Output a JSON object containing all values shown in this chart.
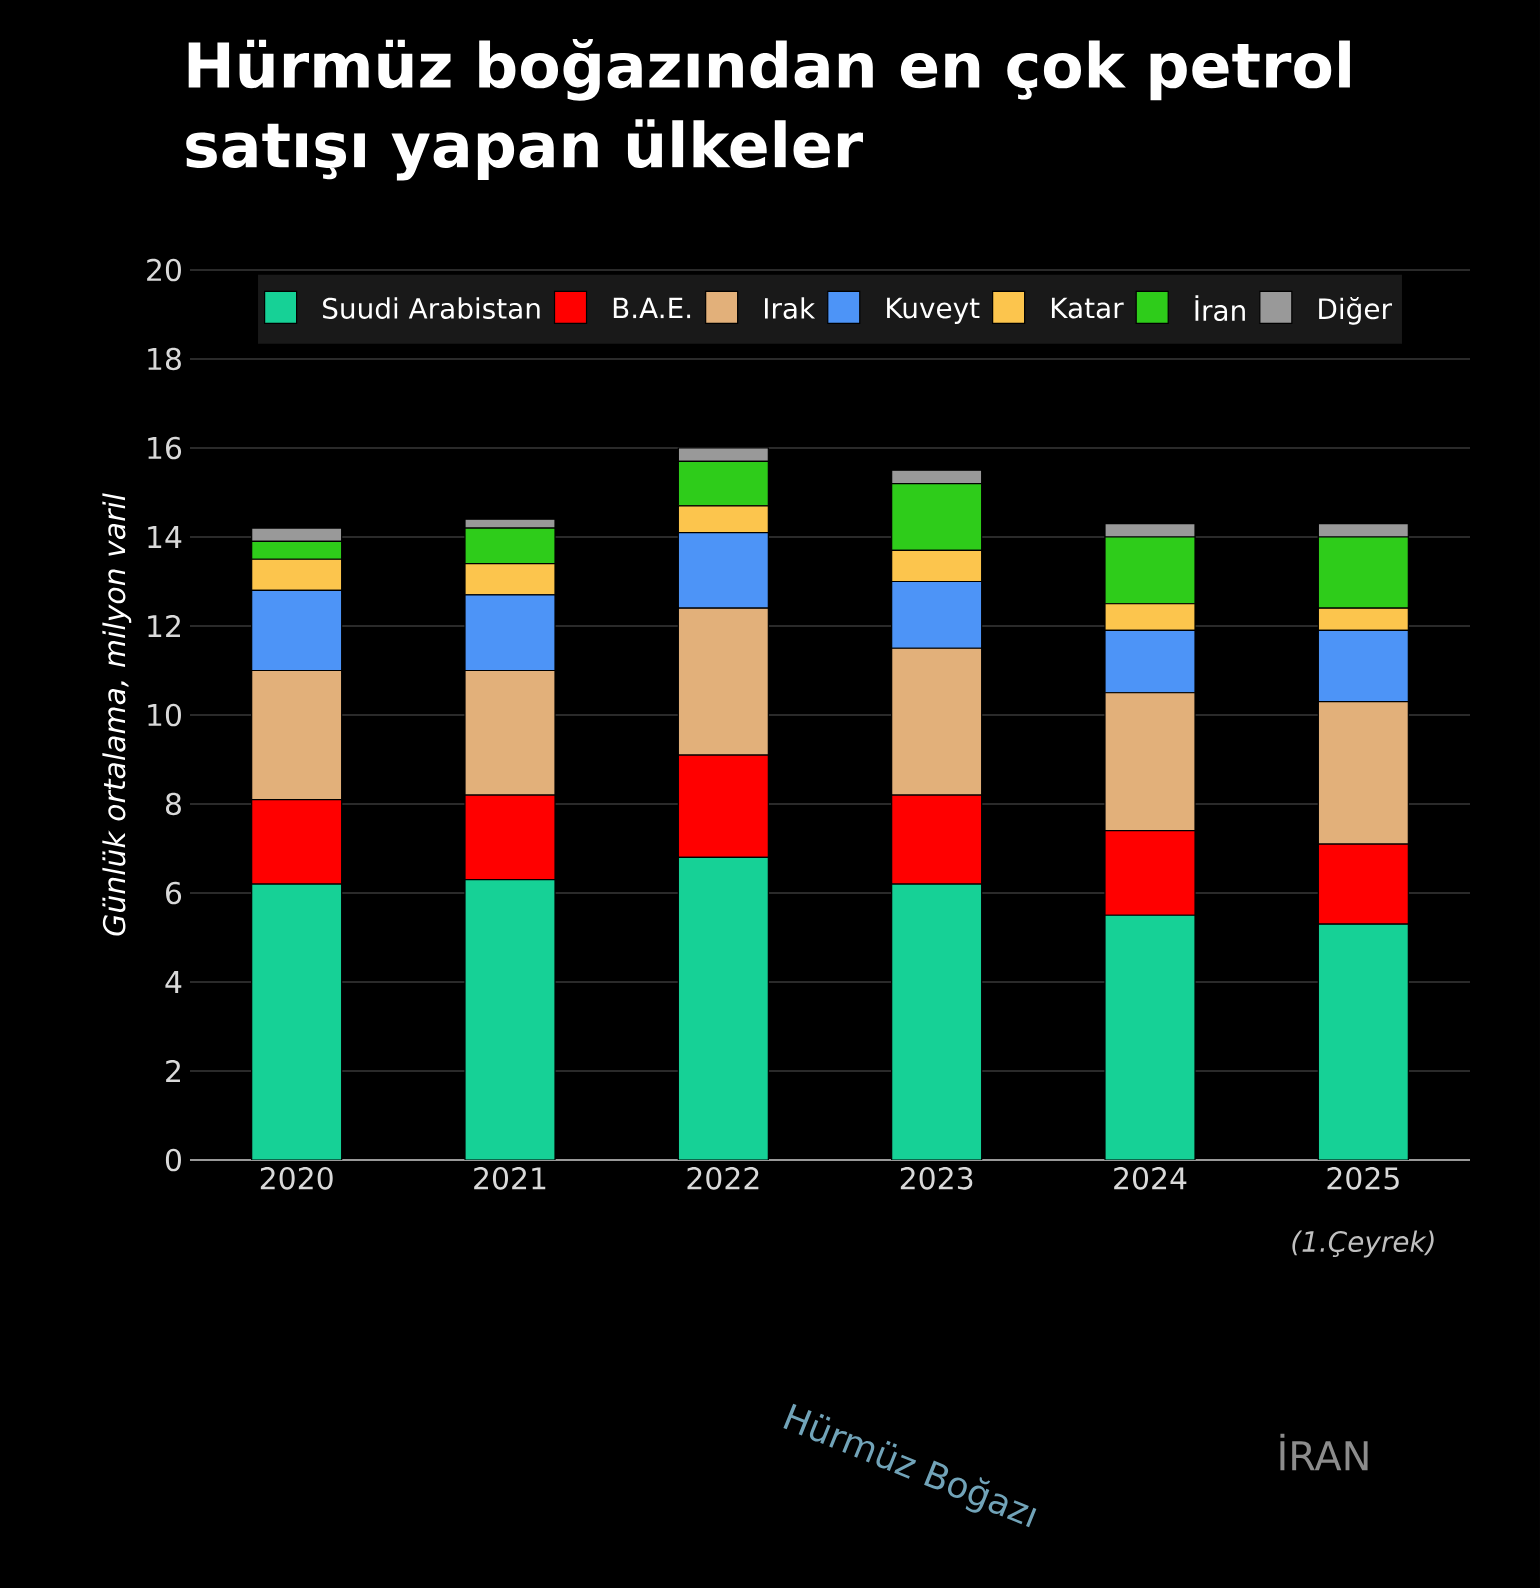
{
  "chart_data": {
    "type": "bar",
    "stacked": true,
    "title": "Hürmüz boğazından en çok petrol satışı yapan ülkeler",
    "ylabel": "Günlük ortalama, milyon varil",
    "categories": [
      "2020",
      "2021",
      "2022",
      "2023",
      "2024",
      "2025"
    ],
    "series": [
      {
        "name": "Suudi Arabistan",
        "color": "#16d196",
        "values": [
          6.2,
          6.3,
          6.8,
          6.2,
          5.5,
          5.3
        ]
      },
      {
        "name": "B.A.E.",
        "color": "#ff0000",
        "values": [
          1.9,
          1.9,
          2.3,
          2.0,
          1.9,
          1.8
        ]
      },
      {
        "name": "Irak",
        "color": "#e2b07a",
        "values": [
          2.9,
          2.8,
          3.3,
          3.3,
          3.1,
          3.2
        ]
      },
      {
        "name": "Kuveyt",
        "color": "#4d94f7",
        "values": [
          1.8,
          1.7,
          1.7,
          1.5,
          1.4,
          1.6
        ]
      },
      {
        "name": "Katar",
        "color": "#fcc54d",
        "values": [
          0.7,
          0.7,
          0.6,
          0.7,
          0.6,
          0.5
        ]
      },
      {
        "name": "İran",
        "color": "#2ecc1a",
        "values": [
          0.4,
          0.8,
          1.0,
          1.5,
          1.5,
          1.6
        ]
      },
      {
        "name": "Diğer",
        "color": "#999999",
        "values": [
          0.3,
          0.2,
          0.3,
          0.3,
          0.3,
          0.3
        ]
      }
    ],
    "ylim": [
      0,
      20
    ],
    "yticks": [
      0,
      2,
      4,
      6,
      8,
      10,
      12,
      14,
      16,
      18,
      20
    ],
    "grid": "y",
    "legend": "top",
    "annotations": [
      "(1.Çeyrek)",
      "Hürmüz Boğazı",
      "İRAN"
    ]
  }
}
